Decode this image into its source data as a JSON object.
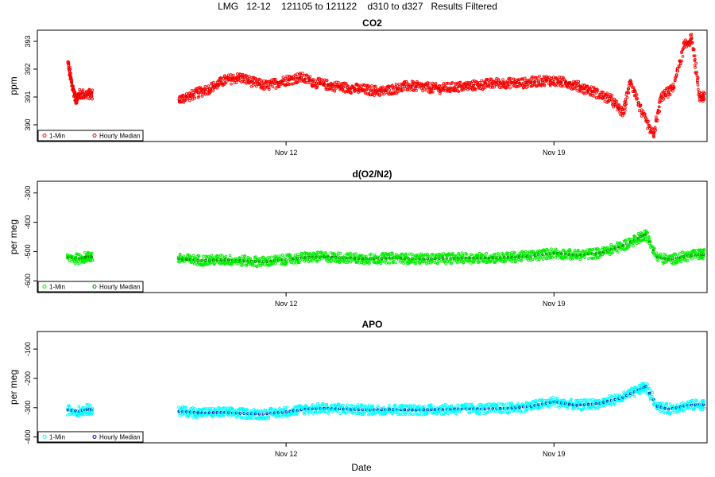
{
  "figure": {
    "title": "LMG   12-12    121105 to 121122    d310 to d327   Results Filtered",
    "xlabel": "Date"
  },
  "chart_data": [
    {
      "type": "scatter",
      "title": "CO2",
      "ylabel": "ppm",
      "xlabel": "",
      "x_ticks": [
        {
          "day": 12,
          "label": "Nov 12"
        },
        {
          "day": 19,
          "label": "Nov 19"
        }
      ],
      "y_ticks": [
        390,
        391,
        392,
        393
      ],
      "xlim": [
        5.5,
        23.0
      ],
      "ylim": [
        389.4,
        393.4
      ],
      "grid": false,
      "legend": "bottom-left",
      "series": [
        {
          "name": "1-Min",
          "marker": "open-circle",
          "color": "#ff0000"
        },
        {
          "name": "Hourly Median",
          "marker": "open-circle",
          "color": "#bb0000"
        }
      ],
      "points": [
        [
          6.3,
          392.2
        ],
        [
          6.4,
          391.5
        ],
        [
          6.5,
          390.9
        ],
        [
          6.6,
          391.1
        ],
        [
          6.8,
          391.1
        ],
        [
          9.2,
          390.9
        ],
        [
          9.6,
          391.1
        ],
        [
          10.0,
          391.3
        ],
        [
          10.4,
          391.6
        ],
        [
          10.8,
          391.7
        ],
        [
          11.2,
          391.5
        ],
        [
          11.5,
          391.4
        ],
        [
          12.0,
          391.6
        ],
        [
          12.4,
          391.7
        ],
        [
          12.8,
          391.5
        ],
        [
          13.2,
          391.4
        ],
        [
          13.8,
          391.3
        ],
        [
          14.5,
          391.2
        ],
        [
          15.2,
          391.4
        ],
        [
          16.0,
          391.3
        ],
        [
          16.8,
          391.4
        ],
        [
          17.5,
          391.5
        ],
        [
          18.2,
          391.5
        ],
        [
          18.8,
          391.6
        ],
        [
          19.4,
          391.5
        ],
        [
          20.0,
          391.2
        ],
        [
          20.5,
          390.9
        ],
        [
          20.8,
          390.4
        ],
        [
          21.0,
          391.6
        ],
        [
          21.3,
          390.4
        ],
        [
          21.6,
          389.6
        ],
        [
          21.8,
          391.0
        ],
        [
          22.1,
          391.3
        ],
        [
          22.4,
          392.8
        ],
        [
          22.6,
          393.1
        ],
        [
          22.8,
          391.0
        ]
      ]
    },
    {
      "type": "scatter",
      "title": "d(O2/N2)",
      "ylabel": "per meg",
      "xlabel": "",
      "x_ticks": [
        {
          "day": 12,
          "label": "Nov 12"
        },
        {
          "day": 19,
          "label": "Nov 19"
        }
      ],
      "y_ticks": [
        -600,
        -500,
        -400,
        -300
      ],
      "xlim": [
        5.5,
        23.0
      ],
      "ylim": [
        -640,
        -260
      ],
      "grid": false,
      "legend": "bottom-left",
      "series": [
        {
          "name": "1-Min",
          "marker": "open-circle",
          "color": "#00ee00"
        },
        {
          "name": "Hourly Median",
          "marker": "open-circle",
          "color": "#007700"
        }
      ],
      "points": [
        [
          6.3,
          -520
        ],
        [
          6.6,
          -525
        ],
        [
          6.8,
          -518
        ],
        [
          9.2,
          -525
        ],
        [
          9.8,
          -530
        ],
        [
          10.4,
          -528
        ],
        [
          10.9,
          -532
        ],
        [
          11.4,
          -535
        ],
        [
          12.0,
          -528
        ],
        [
          12.5,
          -520
        ],
        [
          13.0,
          -518
        ],
        [
          13.6,
          -522
        ],
        [
          14.2,
          -525
        ],
        [
          14.8,
          -522
        ],
        [
          15.4,
          -525
        ],
        [
          16.0,
          -524
        ],
        [
          16.6,
          -522
        ],
        [
          17.2,
          -522
        ],
        [
          17.8,
          -520
        ],
        [
          18.4,
          -515
        ],
        [
          19.0,
          -505
        ],
        [
          19.6,
          -512
        ],
        [
          20.2,
          -505
        ],
        [
          20.8,
          -480
        ],
        [
          21.2,
          -455
        ],
        [
          21.4,
          -440
        ],
        [
          21.7,
          -520
        ],
        [
          22.0,
          -528
        ],
        [
          22.5,
          -515
        ],
        [
          22.8,
          -510
        ]
      ]
    },
    {
      "type": "scatter",
      "title": "APO",
      "ylabel": "per meg",
      "xlabel": "",
      "x_ticks": [
        {
          "day": 12,
          "label": "Nov 12"
        },
        {
          "day": 19,
          "label": "Nov 19"
        }
      ],
      "y_ticks": [
        -400,
        -300,
        -200,
        -100
      ],
      "xlim": [
        5.5,
        23.0
      ],
      "ylim": [
        -420,
        -40
      ],
      "grid": false,
      "legend": "bottom-left",
      "series": [
        {
          "name": "1-Min",
          "marker": "open-circle",
          "color": "#00ffff"
        },
        {
          "name": "Hourly Median",
          "marker": "open-circle",
          "color": "#0000aa"
        }
      ],
      "points": [
        [
          6.3,
          -308
        ],
        [
          6.6,
          -312
        ],
        [
          6.8,
          -306
        ],
        [
          9.2,
          -312
        ],
        [
          9.8,
          -318
        ],
        [
          10.4,
          -316
        ],
        [
          10.9,
          -320
        ],
        [
          11.4,
          -322
        ],
        [
          12.0,
          -314
        ],
        [
          12.5,
          -305
        ],
        [
          13.0,
          -302
        ],
        [
          13.6,
          -305
        ],
        [
          14.2,
          -308
        ],
        [
          14.8,
          -306
        ],
        [
          15.4,
          -308
        ],
        [
          16.0,
          -306
        ],
        [
          16.6,
          -304
        ],
        [
          17.2,
          -304
        ],
        [
          17.8,
          -302
        ],
        [
          18.4,
          -295
        ],
        [
          19.0,
          -280
        ],
        [
          19.6,
          -292
        ],
        [
          20.2,
          -285
        ],
        [
          20.8,
          -265
        ],
        [
          21.2,
          -240
        ],
        [
          21.4,
          -228
        ],
        [
          21.7,
          -295
        ],
        [
          22.0,
          -305
        ],
        [
          22.5,
          -292
        ],
        [
          22.8,
          -290
        ]
      ]
    }
  ]
}
